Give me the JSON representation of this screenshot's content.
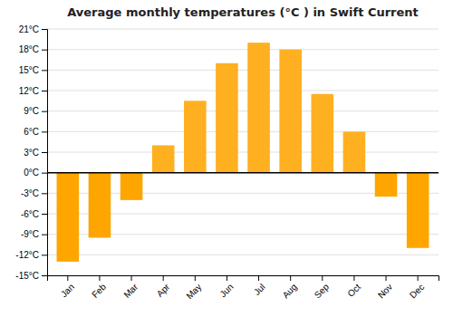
{
  "chart_data": {
    "type": "bar",
    "title": "Average monthly temperatures (°C ) in Swift Current",
    "categories": [
      "Jan",
      "Feb",
      "Mar",
      "Apr",
      "May",
      "Jun",
      "Jul",
      "Aug",
      "Sep",
      "Oct",
      "Nov",
      "Dec"
    ],
    "values": [
      -13,
      -9.5,
      -4,
      4,
      10.5,
      16,
      19,
      18,
      11.5,
      6,
      -3.5,
      -11
    ],
    "colors": [
      "#FFA500",
      "#FFA500",
      "#FFA500",
      "#FFB020",
      "#FFB020",
      "#FFB020",
      "#FFB020",
      "#FFB020",
      "#FFB020",
      "#FFB020",
      "#FFA500",
      "#FFA500"
    ],
    "ylim": [
      -15,
      21
    ],
    "yticks": [
      {
        "value": -15,
        "label": "-15°C"
      },
      {
        "value": -12,
        "label": "-12°C"
      },
      {
        "value": -9,
        "label": "-9°C"
      },
      {
        "value": -6,
        "label": "-6°C"
      },
      {
        "value": -3,
        "label": "-3°C"
      },
      {
        "value": 0,
        "label": "0°C"
      },
      {
        "value": 3,
        "label": "3°C"
      },
      {
        "value": 6,
        "label": "6°C"
      },
      {
        "value": 9,
        "label": "9°C"
      },
      {
        "value": 12,
        "label": "12°C"
      },
      {
        "value": 15,
        "label": "15°C"
      },
      {
        "value": 18,
        "label": "18°C"
      },
      {
        "value": 21,
        "label": "21°C"
      }
    ],
    "grid": true
  }
}
